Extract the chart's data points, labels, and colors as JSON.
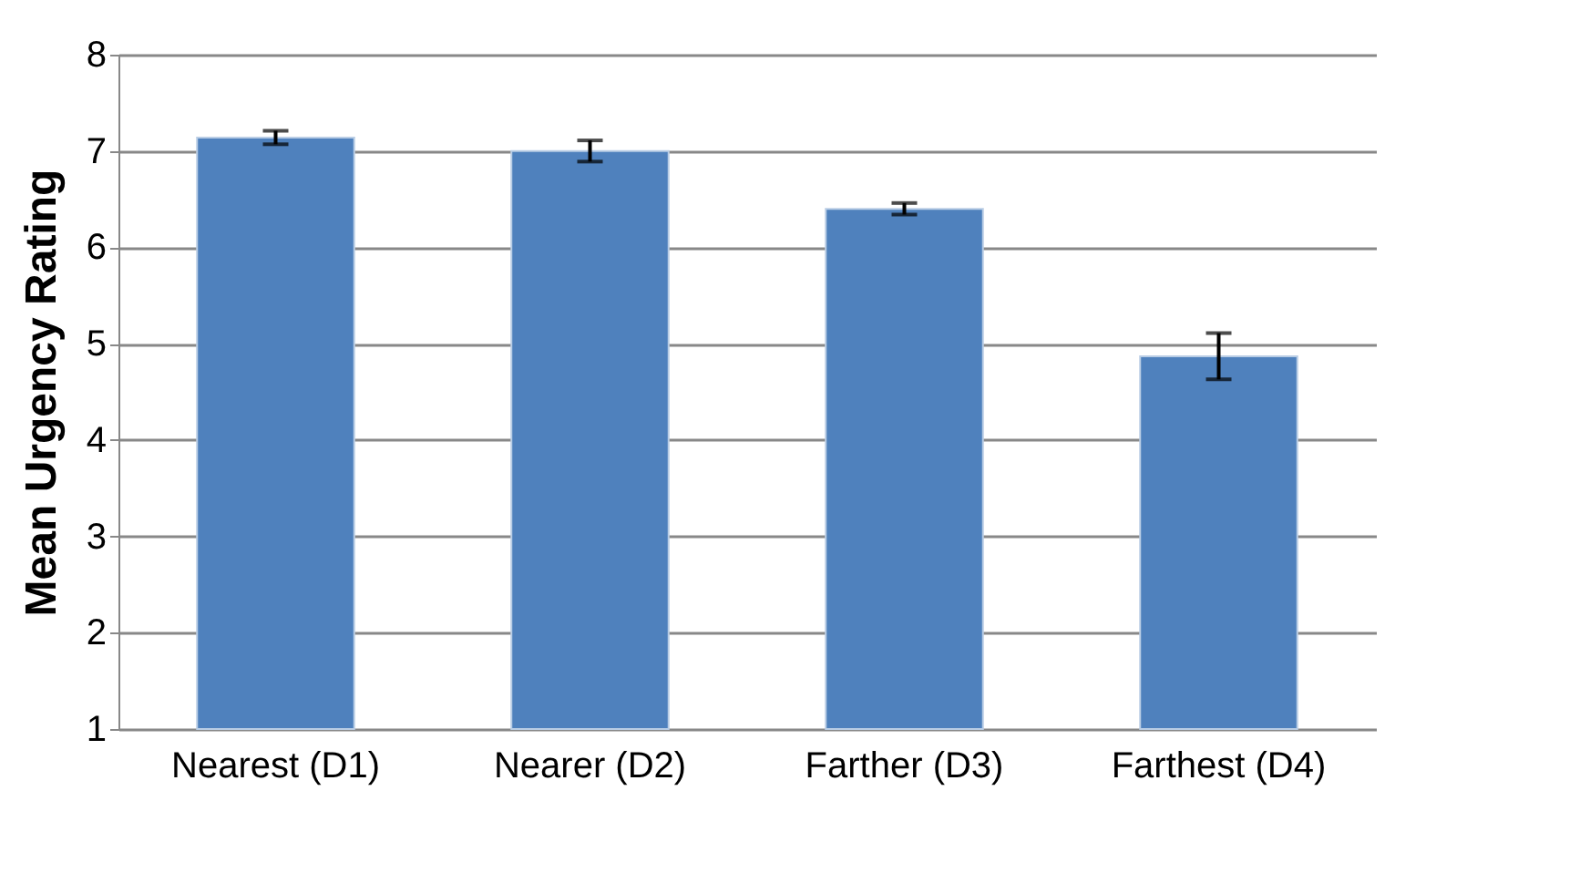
{
  "chart_data": {
    "type": "bar",
    "ylabel": "Mean Urgency Rating",
    "categories": [
      "Nearest (D1)",
      "Nearer (D2)",
      "Farther (D3)",
      "Farthest (D4)"
    ],
    "values": [
      7.14,
      7.0,
      6.4,
      4.87
    ],
    "errors": [
      0.07,
      0.11,
      0.06,
      0.24
    ],
    "color": "#4f81bd",
    "ylim": [
      1,
      8
    ],
    "yticks": [
      1,
      2,
      3,
      4,
      5,
      6,
      7,
      8
    ],
    "grid": "y"
  }
}
